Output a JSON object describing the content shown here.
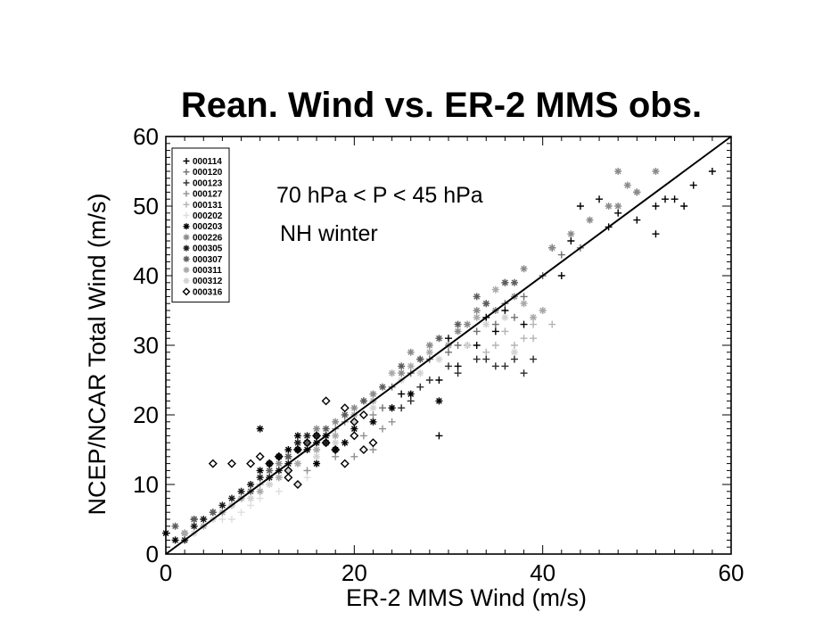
{
  "chart_data": {
    "type": "scatter",
    "title": "Rean. Wind vs. ER-2 MMS obs.",
    "xlabel": "ER-2 MMS Wind (m/s)",
    "ylabel": "NCEP/NCAR Total Wind (m/s)",
    "xlim": [
      0,
      60
    ],
    "ylim": [
      0,
      60
    ],
    "x_ticks": [
      "0",
      "20",
      "40",
      "60"
    ],
    "y_ticks": [
      "0",
      "10",
      "20",
      "30",
      "40",
      "50",
      "60"
    ],
    "grid": false,
    "legend_position": "top-left",
    "annotations": [
      "70 hPa < P < 45 hPa",
      "NH winter"
    ],
    "reference_line": {
      "x": [
        0,
        60
      ],
      "y": [
        0,
        60
      ]
    },
    "series": [
      {
        "name": "000114",
        "marker": "plus",
        "color": "#000000",
        "points": [
          [
            44,
            50
          ],
          [
            46,
            51
          ],
          [
            48,
            49
          ],
          [
            50,
            52
          ],
          [
            52,
            50
          ],
          [
            53,
            51
          ],
          [
            54,
            51
          ],
          [
            55,
            50
          ],
          [
            56,
            53
          ],
          [
            58,
            55
          ],
          [
            52,
            46
          ],
          [
            50,
            48
          ],
          [
            47,
            47
          ],
          [
            43,
            45
          ],
          [
            41,
            44
          ],
          [
            36,
            35
          ],
          [
            38,
            33
          ],
          [
            42,
            40
          ],
          [
            33,
            30
          ],
          [
            35,
            32
          ],
          [
            31,
            27
          ],
          [
            29,
            25
          ],
          [
            27,
            28
          ],
          [
            34,
            34
          ],
          [
            30,
            31
          ],
          [
            25,
            23
          ],
          [
            29,
            17
          ]
        ]
      },
      {
        "name": "000120",
        "marker": "plus",
        "color": "#707070",
        "points": [
          [
            42,
            43
          ],
          [
            44,
            44
          ],
          [
            40,
            40
          ],
          [
            38,
            37
          ],
          [
            37,
            34
          ],
          [
            35,
            33
          ],
          [
            36,
            36
          ],
          [
            33,
            32
          ],
          [
            31,
            30
          ],
          [
            30,
            29
          ],
          [
            28,
            28
          ],
          [
            26,
            26
          ],
          [
            24,
            24
          ],
          [
            22,
            23
          ],
          [
            23,
            21
          ],
          [
            21,
            22
          ]
        ]
      },
      {
        "name": "000123",
        "marker": "plus",
        "color": "#2a2a2a",
        "points": [
          [
            32,
            30
          ],
          [
            34,
            28
          ],
          [
            35,
            27
          ],
          [
            36,
            27
          ],
          [
            37,
            28
          ],
          [
            38,
            26
          ],
          [
            39,
            28
          ],
          [
            33,
            28
          ],
          [
            30,
            27
          ],
          [
            31,
            26
          ],
          [
            28,
            25
          ],
          [
            27,
            24
          ],
          [
            26,
            22
          ],
          [
            25,
            21
          ],
          [
            24,
            21
          ]
        ]
      },
      {
        "name": "000127",
        "marker": "plus",
        "color": "#909090",
        "points": [
          [
            22,
            20
          ],
          [
            20,
            19
          ],
          [
            19,
            19
          ],
          [
            18,
            18
          ],
          [
            17,
            17
          ],
          [
            19,
            16
          ],
          [
            21,
            17
          ],
          [
            23,
            18
          ],
          [
            24,
            19
          ],
          [
            22,
            15
          ],
          [
            20,
            14
          ],
          [
            18,
            14
          ],
          [
            16,
            13
          ],
          [
            15,
            12
          ]
        ]
      },
      {
        "name": "000131",
        "marker": "plus",
        "color": "#b4b4b4",
        "points": [
          [
            39,
            33
          ],
          [
            40,
            35
          ],
          [
            41,
            33
          ],
          [
            38,
            31
          ],
          [
            39,
            31
          ],
          [
            37,
            30
          ],
          [
            36,
            32
          ],
          [
            35,
            30
          ],
          [
            34,
            29
          ],
          [
            16,
            15
          ],
          [
            14,
            13
          ],
          [
            12,
            11
          ],
          [
            10,
            10
          ],
          [
            8,
            8
          ]
        ]
      },
      {
        "name": "000202",
        "marker": "plus",
        "color": "#dedede",
        "points": [
          [
            12,
            9
          ],
          [
            10,
            8
          ],
          [
            9,
            7
          ],
          [
            8,
            6
          ],
          [
            7,
            5
          ],
          [
            6,
            5
          ],
          [
            14,
            10
          ],
          [
            15,
            11
          ],
          [
            13,
            12
          ],
          [
            11,
            10
          ],
          [
            9,
            10
          ],
          [
            7,
            8
          ],
          [
            5,
            6
          ],
          [
            4,
            5
          ]
        ]
      },
      {
        "name": "000203",
        "marker": "asterisk",
        "color": "#000000",
        "points": [
          [
            13,
            14
          ],
          [
            14,
            15
          ],
          [
            15,
            16
          ],
          [
            16,
            16
          ],
          [
            14,
            17
          ],
          [
            13,
            15
          ],
          [
            12,
            14
          ],
          [
            11,
            13
          ],
          [
            10,
            12
          ],
          [
            17,
            17
          ],
          [
            18,
            15
          ],
          [
            16,
            13
          ],
          [
            19,
            16
          ],
          [
            20,
            18
          ],
          [
            22,
            19
          ],
          [
            24,
            21
          ],
          [
            26,
            23
          ],
          [
            29,
            22
          ],
          [
            10,
            18
          ],
          [
            15,
            15
          ],
          [
            1,
            2
          ],
          [
            0,
            3
          ],
          [
            2,
            3
          ],
          [
            3,
            5
          ]
        ]
      },
      {
        "name": "000226",
        "marker": "asterisk",
        "color": "#8a8a8a",
        "points": [
          [
            48,
            50
          ],
          [
            49,
            53
          ],
          [
            50,
            52
          ],
          [
            52,
            55
          ],
          [
            48,
            55
          ],
          [
            47,
            50
          ],
          [
            45,
            48
          ],
          [
            43,
            46
          ],
          [
            41,
            44
          ],
          [
            38,
            41
          ],
          [
            36,
            39
          ],
          [
            37,
            37
          ],
          [
            35,
            35
          ],
          [
            33,
            35
          ],
          [
            32,
            33
          ],
          [
            30,
            30
          ],
          [
            34,
            36
          ],
          [
            31,
            32
          ],
          [
            28,
            30
          ],
          [
            26,
            29
          ],
          [
            25,
            26
          ],
          [
            22,
            23
          ],
          [
            20,
            21
          ],
          [
            18,
            19
          ],
          [
            16,
            18
          ],
          [
            14,
            16
          ],
          [
            12,
            13
          ]
        ]
      },
      {
        "name": "000305",
        "marker": "asterisk",
        "color": "#1a1a1a",
        "points": [
          [
            14,
            16
          ],
          [
            15,
            17
          ],
          [
            16,
            17
          ],
          [
            17,
            16
          ],
          [
            13,
            13
          ],
          [
            12,
            12
          ],
          [
            11,
            11
          ],
          [
            10,
            11
          ],
          [
            9,
            10
          ],
          [
            8,
            9
          ],
          [
            7,
            8
          ],
          [
            6,
            7
          ],
          [
            5,
            6
          ],
          [
            4,
            5
          ],
          [
            3,
            4
          ],
          [
            2,
            2
          ]
        ]
      },
      {
        "name": "000307",
        "marker": "asterisk",
        "color": "#5c5c5c",
        "points": [
          [
            33,
            37
          ],
          [
            36,
            39
          ],
          [
            37,
            39
          ],
          [
            34,
            36
          ],
          [
            31,
            33
          ],
          [
            29,
            31
          ],
          [
            27,
            28
          ],
          [
            25,
            27
          ],
          [
            23,
            24
          ],
          [
            21,
            22
          ],
          [
            19,
            20
          ],
          [
            17,
            18
          ],
          [
            15,
            16
          ],
          [
            13,
            14
          ],
          [
            11,
            12
          ],
          [
            9,
            9
          ],
          [
            7,
            7
          ],
          [
            5,
            6
          ],
          [
            3,
            5
          ],
          [
            1,
            4
          ]
        ]
      },
      {
        "name": "000311",
        "marker": "asterisk",
        "color": "#a8a8a8",
        "points": [
          [
            40,
            35
          ],
          [
            39,
            34
          ],
          [
            38,
            36
          ],
          [
            35,
            38
          ],
          [
            33,
            34
          ],
          [
            30,
            30
          ],
          [
            28,
            29
          ],
          [
            26,
            27
          ],
          [
            24,
            26
          ],
          [
            22,
            22
          ],
          [
            20,
            20
          ],
          [
            18,
            17
          ],
          [
            16,
            15
          ],
          [
            14,
            13
          ],
          [
            12,
            11
          ],
          [
            10,
            9
          ],
          [
            8,
            8
          ],
          [
            6,
            6
          ],
          [
            4,
            4
          ],
          [
            2,
            3
          ]
        ]
      },
      {
        "name": "000312",
        "marker": "asterisk",
        "color": "#d2d2d2",
        "points": [
          [
            37,
            29
          ],
          [
            36,
            34
          ],
          [
            34,
            33
          ],
          [
            32,
            30
          ],
          [
            29,
            28
          ],
          [
            27,
            26
          ],
          [
            25,
            25
          ],
          [
            22,
            21
          ],
          [
            20,
            19
          ],
          [
            18,
            16
          ],
          [
            16,
            14
          ],
          [
            13,
            12
          ],
          [
            11,
            10
          ],
          [
            9,
            8
          ],
          [
            7,
            7
          ],
          [
            5,
            5
          ],
          [
            3,
            3
          ]
        ]
      },
      {
        "name": "000316",
        "marker": "diamond",
        "color": "#000000",
        "points": [
          [
            5,
            13
          ],
          [
            7,
            13
          ],
          [
            9,
            13
          ],
          [
            10,
            14
          ],
          [
            12,
            14
          ],
          [
            11,
            13
          ],
          [
            13,
            12
          ],
          [
            14,
            15
          ],
          [
            15,
            16
          ],
          [
            16,
            17
          ],
          [
            17,
            16
          ],
          [
            18,
            15
          ],
          [
            19,
            13
          ],
          [
            20,
            17
          ],
          [
            21,
            15
          ],
          [
            22,
            16
          ],
          [
            20,
            19
          ],
          [
            21,
            20
          ],
          [
            17,
            22
          ],
          [
            19,
            21
          ],
          [
            13,
            11
          ],
          [
            14,
            10
          ]
        ]
      }
    ]
  }
}
